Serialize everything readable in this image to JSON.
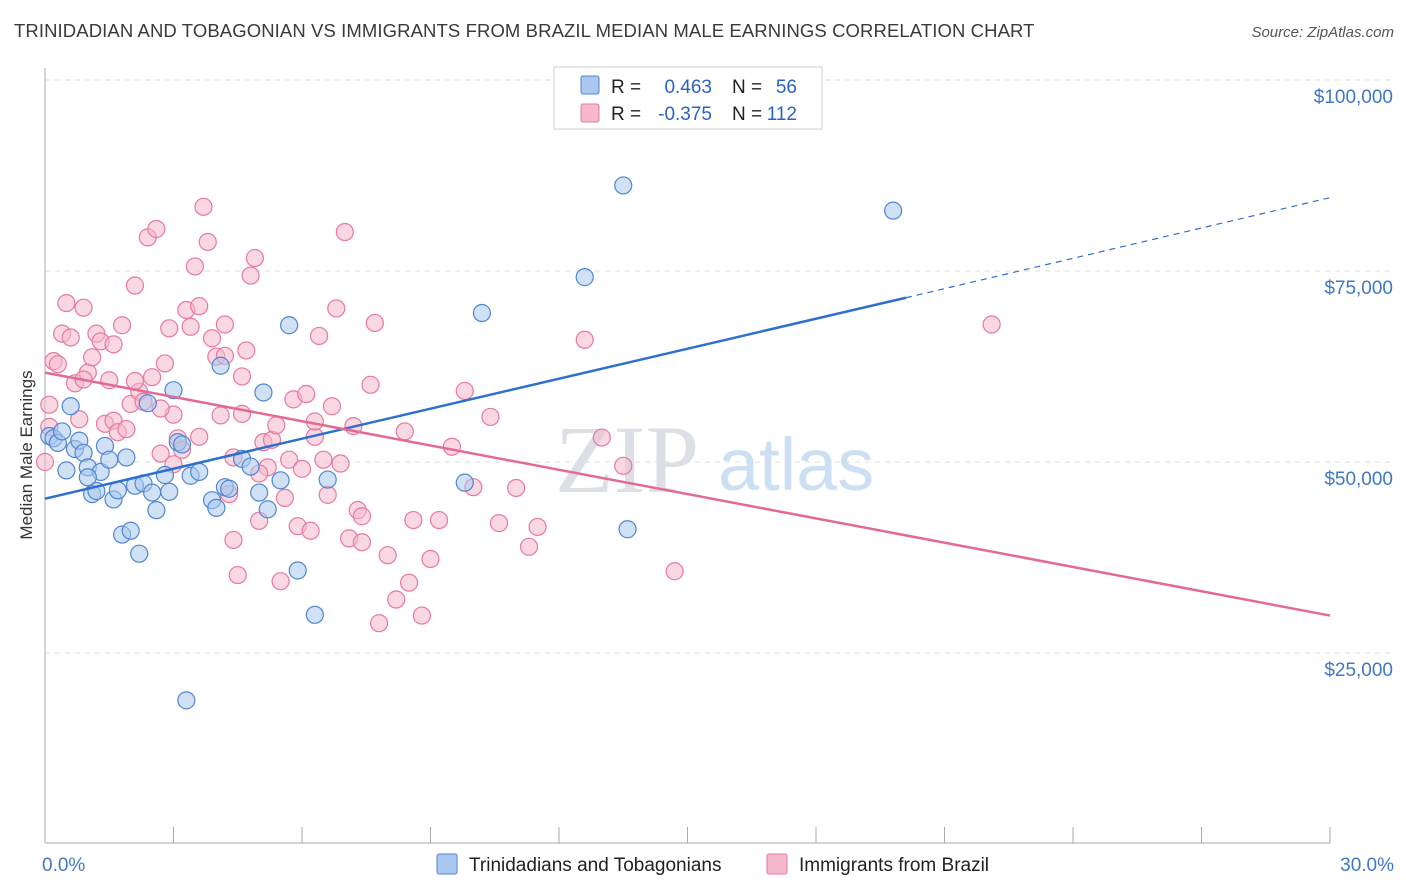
{
  "title": "TRINIDADIAN AND TOBAGONIAN VS IMMIGRANTS FROM BRAZIL MEDIAN MALE EARNINGS CORRELATION CHART",
  "source": "Source: ZipAtlas.com",
  "watermark": {
    "zip": "ZIP",
    "atlas": "atlas"
  },
  "colors": {
    "blue_fill": "#aac8ef",
    "blue_stroke": "#4f86d2",
    "blue_line": "#2f6fce",
    "pink_fill": "#f6b8cc",
    "pink_stroke": "#e8799c",
    "pink_line": "#e26a93",
    "tick_label": "#3f78c7",
    "grid": "#dddddd"
  },
  "legend_stats": [
    {
      "r_label": "R =",
      "r_value": "0.463",
      "n_label": "N =",
      "n_value": "56"
    },
    {
      "r_label": "R =",
      "r_value": "-0.375",
      "n_label": "N =",
      "n_value": "112"
    }
  ],
  "chart_data": {
    "type": "scatter",
    "title": "TRINIDADIAN AND TOBAGONIAN VS IMMIGRANTS FROM BRAZIL MEDIAN MALE EARNINGS CORRELATION CHART",
    "xlabel": "",
    "ylabel": "Median Male Earnings",
    "xlim": [
      0,
      30
    ],
    "ylim": [
      2000,
      103000
    ],
    "x_tick_labels": [
      "0.0%",
      "30.0%"
    ],
    "y_ticks": [
      25000,
      50000,
      75000,
      100000
    ],
    "y_tick_labels": [
      "$25,000",
      "$50,000",
      "$75,000",
      "$100,000"
    ],
    "grid": true,
    "legend_position": "bottom-center",
    "series": [
      {
        "name": "Trinidadians and Tobagonians",
        "color": "blue",
        "r": 0.463,
        "n": 56,
        "trend": {
          "x0": 0,
          "y0": 45200,
          "x1": 20.1,
          "y1": 71500,
          "dashed_to_x": 30,
          "dashed_to_y": 84600
        },
        "points": [
          [
            0.1,
            53400
          ],
          [
            0.2,
            53100
          ],
          [
            0.3,
            52500
          ],
          [
            0.4,
            54000
          ],
          [
            0.5,
            48900
          ],
          [
            0.6,
            57300
          ],
          [
            0.7,
            51700
          ],
          [
            0.8,
            52800
          ],
          [
            0.9,
            51200
          ],
          [
            1.0,
            49300
          ],
          [
            1.1,
            45800
          ],
          [
            1.2,
            46200
          ],
          [
            1.3,
            48700
          ],
          [
            1.4,
            52100
          ],
          [
            1.5,
            50300
          ],
          [
            1.6,
            45100
          ],
          [
            1.7,
            46300
          ],
          [
            1.8,
            40500
          ],
          [
            1.9,
            50600
          ],
          [
            2.0,
            41000
          ],
          [
            2.1,
            46900
          ],
          [
            2.2,
            38000
          ],
          [
            2.3,
            47200
          ],
          [
            2.4,
            57700
          ],
          [
            2.5,
            46000
          ],
          [
            2.6,
            43700
          ],
          [
            2.8,
            48300
          ],
          [
            2.9,
            46100
          ],
          [
            3.0,
            59400
          ],
          [
            3.1,
            52600
          ],
          [
            3.2,
            52300
          ],
          [
            3.3,
            18800
          ],
          [
            3.4,
            48200
          ],
          [
            3.6,
            48700
          ],
          [
            3.9,
            45000
          ],
          [
            4.0,
            44000
          ],
          [
            4.1,
            62600
          ],
          [
            4.2,
            46700
          ],
          [
            4.3,
            46500
          ],
          [
            4.6,
            50400
          ],
          [
            4.8,
            49400
          ],
          [
            5.0,
            46000
          ],
          [
            5.1,
            59100
          ],
          [
            5.2,
            43800
          ],
          [
            5.5,
            47600
          ],
          [
            5.7,
            67900
          ],
          [
            5.9,
            35800
          ],
          [
            6.3,
            30000
          ],
          [
            6.6,
            47700
          ],
          [
            9.8,
            47300
          ],
          [
            10.2,
            69500
          ],
          [
            12.6,
            74200
          ],
          [
            13.5,
            86200
          ],
          [
            13.6,
            41200
          ],
          [
            19.8,
            82900
          ],
          [
            1.0,
            48000
          ]
        ]
      },
      {
        "name": "Immigrants from Brazil",
        "color": "pink",
        "r": -0.375,
        "n": 112,
        "trend": {
          "x0": 0,
          "y0": 61700,
          "x1": 30,
          "y1": 29900
        },
        "points": [
          [
            0.0,
            50000
          ],
          [
            0.1,
            54600
          ],
          [
            0.1,
            57500
          ],
          [
            0.2,
            63200
          ],
          [
            0.3,
            62800
          ],
          [
            0.4,
            66800
          ],
          [
            0.5,
            70800
          ],
          [
            0.6,
            66300
          ],
          [
            0.7,
            60300
          ],
          [
            0.8,
            55600
          ],
          [
            0.9,
            70200
          ],
          [
            1.0,
            61700
          ],
          [
            1.1,
            63700
          ],
          [
            1.2,
            66800
          ],
          [
            1.3,
            65800
          ],
          [
            1.4,
            55000
          ],
          [
            1.5,
            60700
          ],
          [
            1.6,
            55400
          ],
          [
            1.7,
            53900
          ],
          [
            1.8,
            67900
          ],
          [
            1.9,
            54300
          ],
          [
            2.0,
            57600
          ],
          [
            2.1,
            73100
          ],
          [
            2.2,
            59200
          ],
          [
            2.3,
            57900
          ],
          [
            2.4,
            79400
          ],
          [
            2.5,
            61100
          ],
          [
            2.6,
            80500
          ],
          [
            2.7,
            51100
          ],
          [
            2.8,
            62900
          ],
          [
            2.9,
            67500
          ],
          [
            3.0,
            56200
          ],
          [
            3.1,
            53100
          ],
          [
            3.2,
            51600
          ],
          [
            3.3,
            69900
          ],
          [
            3.4,
            67700
          ],
          [
            3.5,
            75600
          ],
          [
            3.6,
            53300
          ],
          [
            3.7,
            83400
          ],
          [
            3.8,
            78800
          ],
          [
            3.9,
            66200
          ],
          [
            4.0,
            63800
          ],
          [
            4.1,
            56100
          ],
          [
            4.2,
            68000
          ],
          [
            4.3,
            45800
          ],
          [
            4.4,
            39800
          ],
          [
            4.5,
            35200
          ],
          [
            4.6,
            61200
          ],
          [
            4.7,
            64600
          ],
          [
            4.8,
            74400
          ],
          [
            4.9,
            76700
          ],
          [
            5.0,
            42300
          ],
          [
            5.1,
            52600
          ],
          [
            5.2,
            49300
          ],
          [
            5.3,
            52900
          ],
          [
            5.4,
            54800
          ],
          [
            5.5,
            34400
          ],
          [
            5.6,
            45300
          ],
          [
            5.7,
            50300
          ],
          [
            5.8,
            58200
          ],
          [
            5.9,
            41600
          ],
          [
            6.0,
            49100
          ],
          [
            6.1,
            58900
          ],
          [
            6.2,
            41000
          ],
          [
            6.3,
            53300
          ],
          [
            6.4,
            66500
          ],
          [
            6.5,
            50300
          ],
          [
            6.6,
            45700
          ],
          [
            6.7,
            57300
          ],
          [
            6.8,
            70100
          ],
          [
            6.9,
            49800
          ],
          [
            7.0,
            80100
          ],
          [
            7.1,
            40000
          ],
          [
            7.2,
            54700
          ],
          [
            7.3,
            43700
          ],
          [
            7.4,
            39500
          ],
          [
            7.6,
            60100
          ],
          [
            7.7,
            68200
          ],
          [
            7.8,
            28900
          ],
          [
            8.0,
            37800
          ],
          [
            8.2,
            32000
          ],
          [
            8.4,
            54000
          ],
          [
            8.6,
            42400
          ],
          [
            8.8,
            29900
          ],
          [
            9.0,
            37300
          ],
          [
            9.5,
            52000
          ],
          [
            9.8,
            59300
          ],
          [
            10.0,
            46700
          ],
          [
            10.4,
            55900
          ],
          [
            10.6,
            42000
          ],
          [
            11.0,
            46600
          ],
          [
            11.3,
            38900
          ],
          [
            11.5,
            41500
          ],
          [
            12.6,
            66000
          ],
          [
            13.0,
            53200
          ],
          [
            13.5,
            49500
          ],
          [
            14.7,
            35700
          ],
          [
            22.1,
            68000
          ],
          [
            2.1,
            60600
          ],
          [
            3.0,
            49700
          ],
          [
            4.4,
            50600
          ],
          [
            5.0,
            48500
          ],
          [
            6.3,
            55300
          ],
          [
            7.4,
            42900
          ],
          [
            8.5,
            34200
          ],
          [
            9.2,
            42400
          ],
          [
            4.2,
            63900
          ],
          [
            1.6,
            65400
          ],
          [
            3.6,
            70400
          ],
          [
            2.7,
            57000
          ],
          [
            4.6,
            56300
          ],
          [
            0.9,
            60800
          ]
        ]
      }
    ]
  }
}
